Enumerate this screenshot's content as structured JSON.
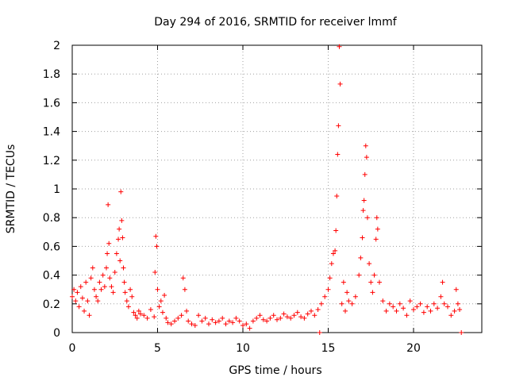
{
  "chart_data": {
    "type": "scatter",
    "title": "Day 294 of 2016, SRMTID for receiver lmmf",
    "xlabel": "GPS time / hours",
    "ylabel": "SRMTID / TECUs",
    "xlim": [
      0,
      24
    ],
    "ylim": [
      0,
      2
    ],
    "xticks": [
      0,
      5,
      10,
      15,
      20
    ],
    "xtick_labels": [
      "0",
      "5",
      "10",
      "15",
      "20"
    ],
    "yticks": [
      0,
      0.2,
      0.4,
      0.6,
      0.8,
      1,
      1.2,
      1.4,
      1.6,
      1.8,
      2
    ],
    "ytick_labels": [
      "0",
      "0.2",
      "0.4",
      "0.6",
      "0.8",
      "1",
      "1.2",
      "1.4",
      "1.6",
      "1.8",
      "2"
    ],
    "grid": true,
    "marker": "+",
    "marker_color": "#ff0000",
    "series": [
      {
        "name": "SRMTID",
        "x": [
          0.0,
          0.1,
          0.2,
          0.3,
          0.4,
          0.5,
          0.6,
          0.7,
          0.8,
          0.9,
          1.0,
          1.1,
          1.2,
          1.3,
          1.4,
          1.5,
          1.6,
          1.7,
          1.8,
          1.9,
          2.0,
          2.05,
          2.1,
          2.15,
          2.2,
          2.3,
          2.4,
          2.5,
          2.6,
          2.7,
          2.75,
          2.8,
          2.85,
          2.9,
          2.95,
          3.0,
          3.05,
          3.1,
          3.2,
          3.3,
          3.4,
          3.5,
          3.6,
          3.7,
          3.8,
          3.9,
          4.0,
          4.2,
          4.4,
          4.6,
          4.8,
          4.85,
          4.9,
          4.95,
          5.0,
          5.1,
          5.2,
          5.3,
          5.4,
          5.5,
          5.6,
          5.8,
          6.0,
          6.2,
          6.4,
          6.5,
          6.6,
          6.7,
          6.8,
          7.0,
          7.2,
          7.4,
          7.6,
          7.8,
          8.0,
          8.2,
          8.4,
          8.6,
          8.8,
          9.0,
          9.2,
          9.4,
          9.6,
          9.8,
          10.0,
          10.2,
          10.4,
          10.6,
          10.8,
          11.0,
          11.2,
          11.4,
          11.6,
          11.8,
          12.0,
          12.2,
          12.4,
          12.6,
          12.8,
          13.0,
          13.2,
          13.4,
          13.6,
          13.8,
          14.0,
          14.2,
          14.4,
          14.5,
          14.6,
          14.8,
          15.0,
          15.1,
          15.2,
          15.3,
          15.4,
          15.45,
          15.5,
          15.55,
          15.6,
          15.65,
          15.7,
          15.8,
          15.9,
          16.0,
          16.1,
          16.2,
          16.4,
          16.6,
          16.8,
          16.9,
          17.0,
          17.05,
          17.1,
          17.15,
          17.2,
          17.25,
          17.3,
          17.4,
          17.5,
          17.6,
          17.7,
          17.8,
          17.85,
          17.9,
          18.0,
          18.2,
          18.4,
          18.6,
          18.8,
          19.0,
          19.2,
          19.4,
          19.6,
          19.8,
          20.0,
          20.2,
          20.4,
          20.6,
          20.8,
          21.0,
          21.2,
          21.4,
          21.6,
          21.7,
          21.8,
          22.0,
          22.2,
          22.4,
          22.5,
          22.6,
          22.7,
          22.8
        ],
        "y": [
          0.25,
          0.3,
          0.22,
          0.28,
          0.18,
          0.32,
          0.24,
          0.15,
          0.35,
          0.22,
          0.12,
          0.38,
          0.45,
          0.3,
          0.25,
          0.22,
          0.35,
          0.3,
          0.4,
          0.32,
          0.45,
          0.55,
          0.89,
          0.62,
          0.38,
          0.32,
          0.28,
          0.42,
          0.55,
          0.65,
          0.72,
          0.5,
          0.98,
          0.78,
          0.66,
          0.45,
          0.35,
          0.28,
          0.22,
          0.18,
          0.3,
          0.25,
          0.14,
          0.12,
          0.1,
          0.15,
          0.13,
          0.12,
          0.1,
          0.16,
          0.11,
          0.42,
          0.67,
          0.6,
          0.3,
          0.18,
          0.22,
          0.14,
          0.26,
          0.1,
          0.07,
          0.06,
          0.08,
          0.1,
          0.12,
          0.38,
          0.3,
          0.15,
          0.08,
          0.06,
          0.05,
          0.12,
          0.08,
          0.1,
          0.06,
          0.09,
          0.07,
          0.08,
          0.1,
          0.06,
          0.08,
          0.07,
          0.1,
          0.08,
          0.05,
          0.06,
          0.03,
          0.08,
          0.1,
          0.12,
          0.09,
          0.08,
          0.1,
          0.12,
          0.09,
          0.1,
          0.13,
          0.11,
          0.1,
          0.12,
          0.14,
          0.11,
          0.1,
          0.13,
          0.15,
          0.12,
          0.16,
          0.0,
          0.2,
          0.25,
          0.3,
          0.38,
          0.48,
          0.55,
          0.57,
          0.71,
          0.95,
          1.24,
          1.44,
          1.99,
          1.73,
          0.2,
          0.35,
          0.15,
          0.28,
          0.22,
          0.2,
          0.25,
          0.4,
          0.52,
          0.66,
          0.85,
          0.92,
          1.1,
          1.3,
          1.22,
          0.8,
          0.48,
          0.35,
          0.28,
          0.4,
          0.65,
          0.8,
          0.72,
          0.35,
          0.22,
          0.15,
          0.2,
          0.18,
          0.15,
          0.2,
          0.17,
          0.12,
          0.22,
          0.16,
          0.18,
          0.2,
          0.14,
          0.18,
          0.15,
          0.2,
          0.17,
          0.25,
          0.35,
          0.2,
          0.18,
          0.12,
          0.15,
          0.3,
          0.2,
          0.16,
          0.0
        ]
      }
    ]
  }
}
